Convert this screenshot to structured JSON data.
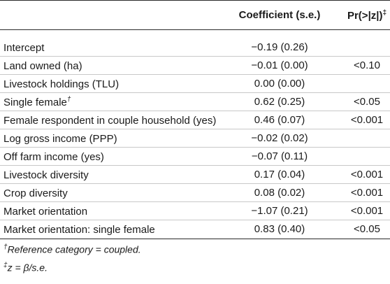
{
  "header": {
    "coefficient": "Coefficient (s.e.)",
    "pvalue": "Pr(>|z|)",
    "pvalue_mark": "‡"
  },
  "rows": [
    {
      "label": "Intercept",
      "mark": "",
      "coef": "−0.19 (0.26)",
      "p": ""
    },
    {
      "label": "Land owned (ha)",
      "mark": "",
      "coef": "−0.01 (0.00)",
      "p": "<0.10"
    },
    {
      "label": "Livestock holdings (TLU)",
      "mark": "",
      "coef": "0.00 (0.00)",
      "p": ""
    },
    {
      "label": "Single female",
      "mark": "†",
      "coef": "0.62 (0.25)",
      "p": "<0.05"
    },
    {
      "label": "Female respondent in couple household (yes)",
      "mark": "",
      "coef": "0.46 (0.07)",
      "p": "<0.001"
    },
    {
      "label": "Log gross income (PPP)",
      "mark": "",
      "coef": "−0.02 (0.02)",
      "p": ""
    },
    {
      "label": "Off farm income (yes)",
      "mark": "",
      "coef": "−0.07 (0.11)",
      "p": ""
    },
    {
      "label": "Livestock diversity",
      "mark": "",
      "coef": "0.17 (0.04)",
      "p": "<0.001"
    },
    {
      "label": "Crop diversity",
      "mark": "",
      "coef": "0.08 (0.02)",
      "p": "<0.001"
    },
    {
      "label": "Market orientation",
      "mark": "",
      "coef": "−1.07 (0.21)",
      "p": "<0.001"
    },
    {
      "label": "Market orientation: single female",
      "mark": "",
      "coef": "0.83 (0.40)",
      "p": "<0.05"
    }
  ],
  "footnotes": [
    {
      "mark": "†",
      "text": "Reference category = coupled."
    },
    {
      "mark": "‡",
      "text": "z = β/s.e."
    }
  ]
}
